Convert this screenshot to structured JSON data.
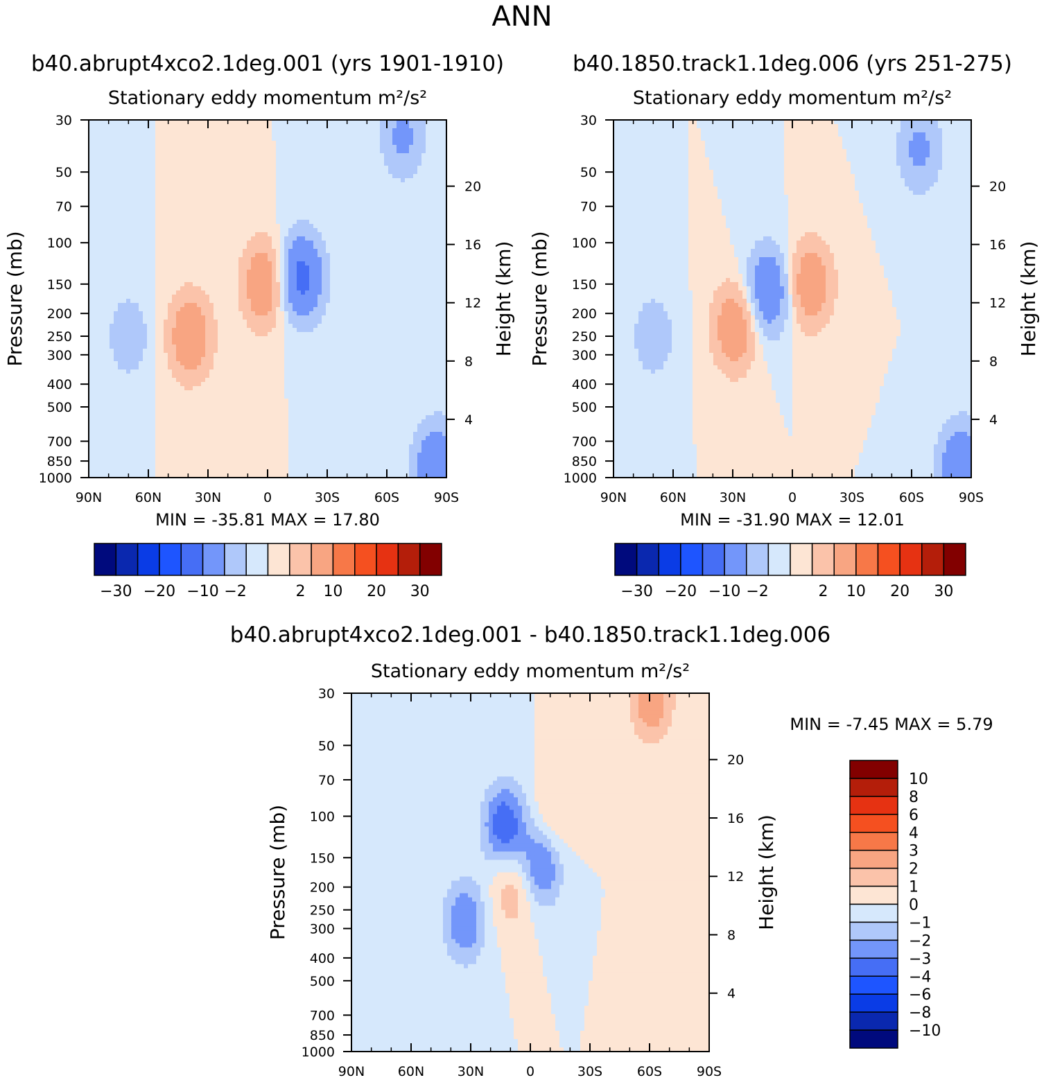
{
  "figure": {
    "title": "ANN"
  },
  "chart_data": [
    {
      "type": "heatmap",
      "title": "b40.abrupt4xco2.1deg.001 (yrs 1901-1910)",
      "subtitle": "Stationary eddy momentum  m²/s²",
      "xlabel": "",
      "ylabel": "Pressure (mb)",
      "ylabel_right": "Height (km)",
      "x_ticks": [
        "90N",
        "60N",
        "30N",
        "0",
        "30S",
        "60S",
        "90S"
      ],
      "y_ticks": [
        30,
        50,
        70,
        100,
        150,
        200,
        250,
        300,
        400,
        500,
        700,
        850,
        1000
      ],
      "y_right_ticks": [
        20,
        16,
        12,
        8,
        4
      ],
      "x_range": [
        90,
        -90
      ],
      "y_range": [
        1000,
        30
      ],
      "y_scale": "log",
      "min": "-35.81",
      "max": "17.80",
      "colorbar": {
        "orientation": "horizontal",
        "levels": [
          -30,
          -25,
          -20,
          -15,
          -10,
          -5,
          -2,
          0,
          2,
          5,
          10,
          15,
          20,
          25,
          30
        ],
        "tick_labels": [
          "−30",
          "−20",
          "−10",
          "−2",
          "2",
          "10",
          "20",
          "30"
        ]
      },
      "features": [
        {
          "lat": -17,
          "p": 140,
          "value": -12
        },
        {
          "lat": 2,
          "p": 150,
          "value": 9
        },
        {
          "lat": 39,
          "p": 250,
          "value": 9
        },
        {
          "lat": -68,
          "p": 35,
          "value": -6
        },
        {
          "lat": 70,
          "p": 250,
          "value": -4
        },
        {
          "lat": -85,
          "p": 900,
          "value": -10
        }
      ]
    },
    {
      "type": "heatmap",
      "title": "b40.1850.track1.1deg.006 (yrs 251-275)",
      "subtitle": "Stationary eddy momentum  m²/s²",
      "xlabel": "",
      "ylabel": "Pressure (mb)",
      "ylabel_right": "Height (km)",
      "x_ticks": [
        "90N",
        "60N",
        "30N",
        "0",
        "30S",
        "60S",
        "90S"
      ],
      "y_ticks": [
        30,
        50,
        70,
        100,
        150,
        200,
        250,
        300,
        400,
        500,
        700,
        850,
        1000
      ],
      "y_right_ticks": [
        20,
        16,
        12,
        8,
        4
      ],
      "x_range": [
        90,
        -90
      ],
      "y_range": [
        1000,
        30
      ],
      "y_scale": "log",
      "min": "-31.90",
      "max": "12.01",
      "colorbar": {
        "orientation": "horizontal",
        "levels": [
          -30,
          -25,
          -20,
          -15,
          -10,
          -5,
          -2,
          0,
          2,
          5,
          10,
          15,
          20,
          25,
          30
        ],
        "tick_labels": [
          "−30",
          "−20",
          "−10",
          "−2",
          "2",
          "10",
          "20",
          "30"
        ]
      },
      "features": [
        {
          "lat": 12,
          "p": 160,
          "value": -10
        },
        {
          "lat": -9,
          "p": 150,
          "value": 9
        },
        {
          "lat": 29,
          "p": 230,
          "value": 9
        },
        {
          "lat": -64,
          "p": 40,
          "value": -6
        },
        {
          "lat": 70,
          "p": 250,
          "value": -4
        },
        {
          "lat": -85,
          "p": 900,
          "value": -10
        }
      ]
    },
    {
      "type": "heatmap",
      "title": "b40.abrupt4xco2.1deg.001 - b40.1850.track1.1deg.006",
      "subtitle": "Stationary eddy momentum  m²/s²",
      "xlabel": "",
      "ylabel": "Pressure (mb)",
      "ylabel_right": "Height (km)",
      "x_ticks": [
        "90N",
        "60N",
        "30N",
        "0",
        "30S",
        "60S",
        "90S"
      ],
      "y_ticks": [
        30,
        50,
        70,
        100,
        150,
        200,
        250,
        300,
        400,
        500,
        700,
        850,
        1000
      ],
      "y_right_ticks": [
        20,
        16,
        12,
        8,
        4
      ],
      "x_range": [
        90,
        -90
      ],
      "y_range": [
        1000,
        30
      ],
      "y_scale": "log",
      "min": "-7.45",
      "max": "5.79",
      "colorbar": {
        "orientation": "vertical",
        "levels": [
          -10,
          -8,
          -6,
          -4,
          -3,
          -2,
          -1,
          0,
          1,
          2,
          3,
          4,
          6,
          8,
          10
        ],
        "tick_labels": [
          "10",
          "8",
          "6",
          "4",
          "3",
          "2",
          "1",
          "0",
          "−1",
          "−2",
          "−3",
          "−4",
          "−6",
          "−8",
          "−10"
        ]
      },
      "features": [
        {
          "lat": 13,
          "p": 110,
          "value": -4
        },
        {
          "lat": -6,
          "p": 155,
          "value": -4
        },
        {
          "lat": 33,
          "p": 280,
          "value": -3
        },
        {
          "lat": -10,
          "p": 115,
          "value": 2
        },
        {
          "lat": 9,
          "p": 200,
          "value": 2
        },
        {
          "lat": -61,
          "p": 32,
          "value": 3
        },
        {
          "lat": -66,
          "p": 330,
          "value": 1
        }
      ]
    }
  ],
  "colors": {
    "scale": [
      "#000a7d",
      "#0a28af",
      "#0a3ce6",
      "#1e55ff",
      "#466ef5",
      "#7396fa",
      "#afc8fa",
      "#d6e8fc",
      "#fde5d4",
      "#fbc3aa",
      "#f8a582",
      "#f77848",
      "#f55020",
      "#e63212",
      "#b41e0a",
      "#820000"
    ],
    "positive": "#fde5d4",
    "negative": "#d6e8fc"
  }
}
